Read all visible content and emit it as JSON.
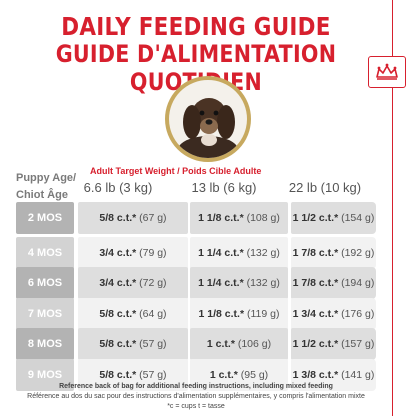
{
  "header": {
    "title_en": "DAILY FEEDING GUIDE",
    "title_fr": "GUIDE D'ALIMENTATION QUOTIDIEN"
  },
  "brand": {
    "logo_icon": "royal-canin-crown-icon",
    "accent_color": "#d7202e"
  },
  "photo": {
    "subject": "puppy-photo"
  },
  "table": {
    "target_weight_header": "Adult Target Weight / Poids Cible Adulte",
    "age_header_line1": "Puppy Age/",
    "age_header_line2": "Chiot Âge",
    "columns": [
      "6.6 lb (3 kg)",
      "13 lb (6 kg)",
      "22 lb (10 kg)"
    ],
    "rows": [
      {
        "age": "2 MOS",
        "cells": [
          {
            "cups": "5/8 c.t.*",
            "grams": "(67 g)"
          },
          {
            "cups": "1 1/8 c.t.*",
            "grams": "(108 g)"
          },
          {
            "cups": "1 1/2 c.t.*",
            "grams": "(154 g)"
          }
        ]
      },
      {
        "age": "4 MOS",
        "cells": [
          {
            "cups": "3/4 c.t.*",
            "grams": "(79 g)"
          },
          {
            "cups": "1 1/4 c.t.*",
            "grams": "(132 g)"
          },
          {
            "cups": "1 7/8 c.t.*",
            "grams": "(192 g)"
          }
        ]
      },
      {
        "age": "6 MOS",
        "cells": [
          {
            "cups": "3/4 c.t.*",
            "grams": "(72 g)"
          },
          {
            "cups": "1 1/4 c.t.*",
            "grams": "(132 g)"
          },
          {
            "cups": "1 7/8 c.t.*",
            "grams": "(194 g)"
          }
        ]
      },
      {
        "age": "7 MOS",
        "cells": [
          {
            "cups": "5/8 c.t.*",
            "grams": "(64 g)"
          },
          {
            "cups": "1 1/8 c.t.*",
            "grams": "(119 g)"
          },
          {
            "cups": "1 3/4 c.t.*",
            "grams": "(176 g)"
          }
        ]
      },
      {
        "age": "8 MOS",
        "cells": [
          {
            "cups": "5/8 c.t.*",
            "grams": "(57 g)"
          },
          {
            "cups": "1 c.t.*",
            "grams": "(106 g)"
          },
          {
            "cups": "1 1/2 c.t.*",
            "grams": "(157 g)"
          }
        ]
      },
      {
        "age": "9 MOS",
        "cells": [
          {
            "cups": "5/8 c.t.*",
            "grams": "(57 g)"
          },
          {
            "cups": "1 c.t.*",
            "grams": "(95 g)"
          },
          {
            "cups": "1 3/8 c.t.*",
            "grams": "(141 g)"
          }
        ]
      }
    ]
  },
  "footer": {
    "line1": "Reference back of bag for additional feeding instructions, including mixed feeding",
    "line2": "Référence au dos du sac pour des instructions d'alimentation supplémentaires, y compris l'alimentation mixte",
    "line3": "*c = cups t = tasse"
  }
}
